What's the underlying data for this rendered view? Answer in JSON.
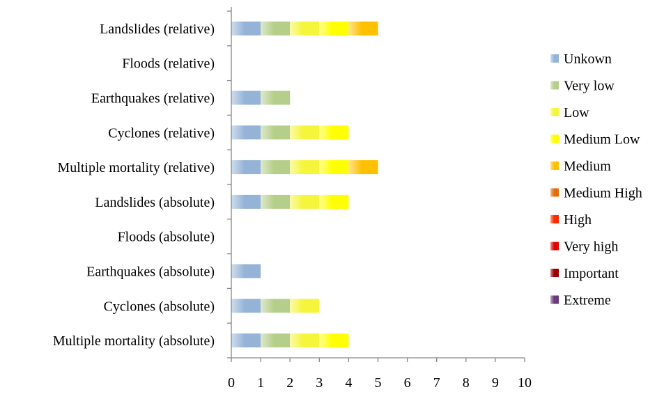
{
  "chart_data": {
    "type": "bar",
    "orientation": "horizontal",
    "stacked": true,
    "categories": [
      "Landslides (relative)",
      "Floods (relative)",
      "Earthquakes (relative)",
      "Cyclones (relative)",
      "Multiple mortality (relative)",
      "Landslides (absolute)",
      "Floods (absolute)",
      "Earthquakes (absolute)",
      "Cyclones (absolute)",
      "Multiple mortality (absolute)"
    ],
    "series": [
      {
        "name": "Unkown",
        "color": "#95b3d7",
        "values": [
          1,
          0,
          1,
          1,
          1,
          1,
          0,
          1,
          1,
          1
        ]
      },
      {
        "name": "Very low",
        "color": "#b5cf8b",
        "values": [
          1,
          0,
          1,
          1,
          1,
          1,
          0,
          0,
          1,
          1
        ]
      },
      {
        "name": "Low",
        "color": "#f5f53c",
        "values": [
          1,
          0,
          0,
          1,
          1,
          1,
          0,
          0,
          1,
          1
        ]
      },
      {
        "name": "Medium Low",
        "color": "#ffff00",
        "values": [
          1,
          0,
          0,
          1,
          1,
          1,
          0,
          0,
          0,
          1
        ]
      },
      {
        "name": "Medium",
        "color": "#ffc000",
        "values": [
          1,
          0,
          0,
          0,
          1,
          0,
          0,
          0,
          0,
          0
        ]
      },
      {
        "name": "Medium High",
        "color": "#e46c0a",
        "values": [
          0,
          0,
          0,
          0,
          0,
          0,
          0,
          0,
          0,
          0
        ]
      },
      {
        "name": "High",
        "color": "#ff2a00",
        "values": [
          0,
          0,
          0,
          0,
          0,
          0,
          0,
          0,
          0,
          0
        ]
      },
      {
        "name": "Very high",
        "color": "#e00000",
        "values": [
          0,
          0,
          0,
          0,
          0,
          0,
          0,
          0,
          0,
          0
        ]
      },
      {
        "name": "Important",
        "color": "#9a0000",
        "values": [
          0,
          0,
          0,
          0,
          0,
          0,
          0,
          0,
          0,
          0
        ]
      },
      {
        "name": "Extreme",
        "color": "#6a3a7a",
        "values": [
          0,
          0,
          0,
          0,
          0,
          0,
          0,
          0,
          0,
          0
        ]
      }
    ],
    "xlim": [
      0,
      10
    ],
    "xticks": [
      "0",
      "1",
      "2",
      "3",
      "4",
      "5",
      "6",
      "7",
      "8",
      "9",
      "10"
    ],
    "title": "",
    "xlabel": "",
    "ylabel": "",
    "grid": false,
    "legend_position": "right"
  }
}
